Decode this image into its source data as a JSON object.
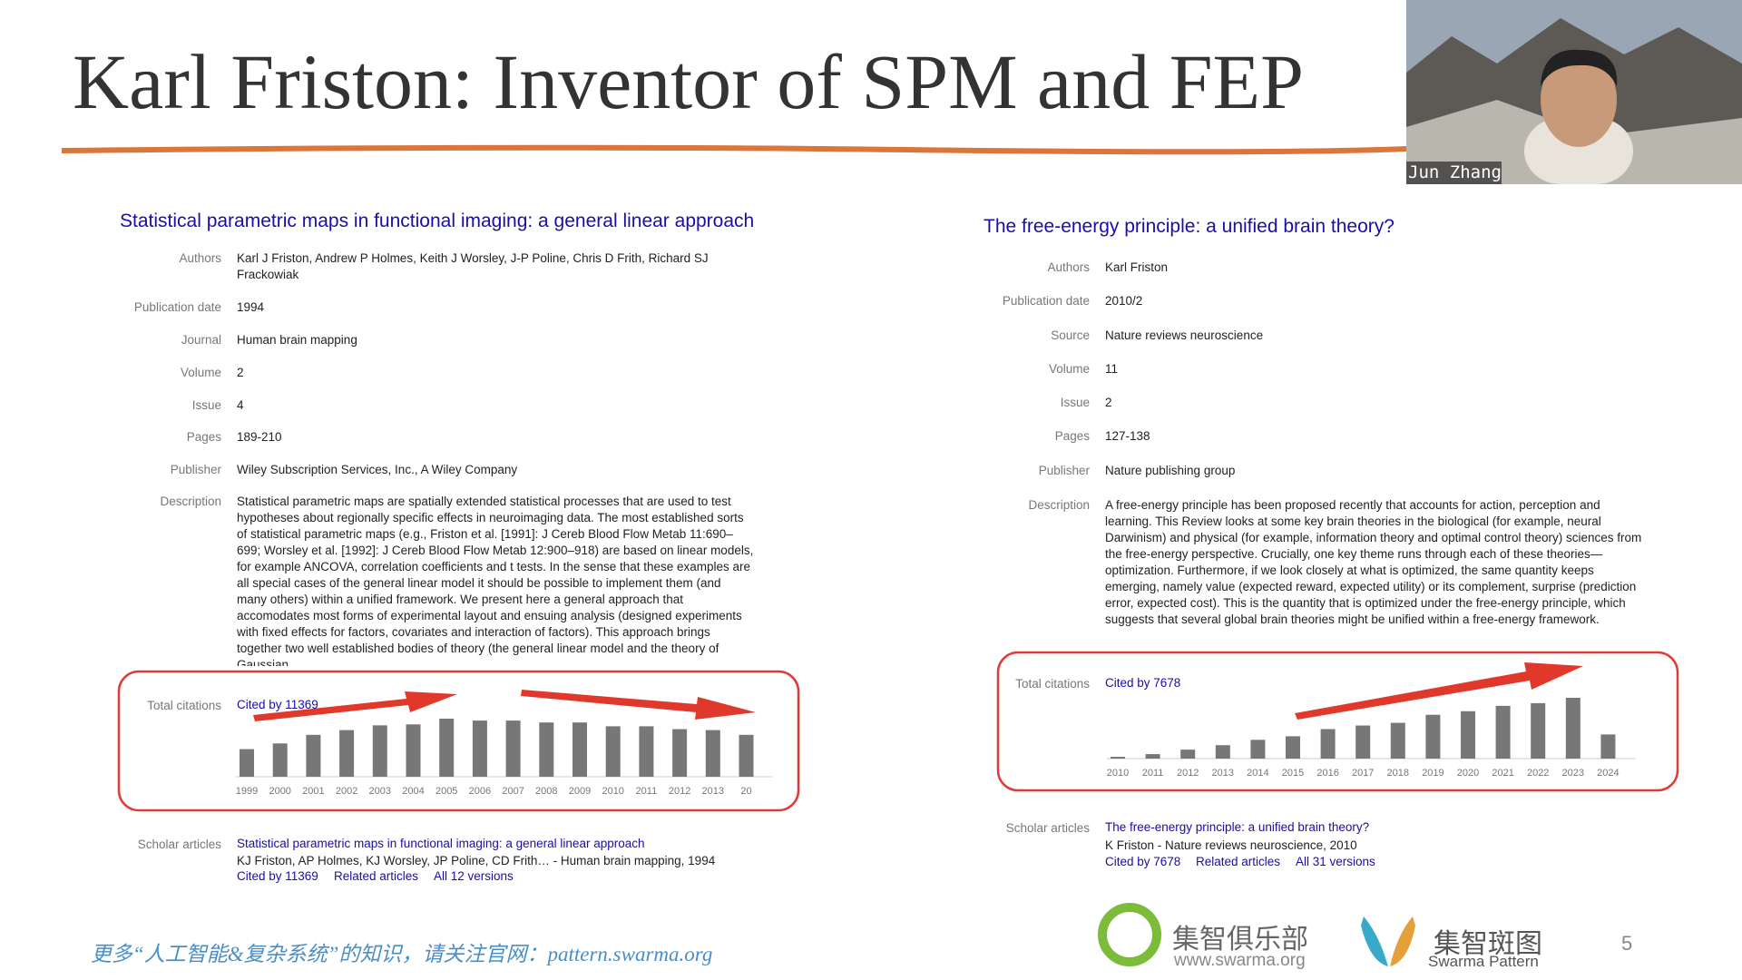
{
  "slide": {
    "title": "Karl Friston: Inventor of SPM and FEP",
    "page_number": "5"
  },
  "video": {
    "name": "Jun Zhang"
  },
  "papers": [
    {
      "title": "Statistical parametric maps in functional imaging: a general linear approach",
      "fields": [
        {
          "label": "Authors",
          "value": "Karl J Friston, Andrew P Holmes, Keith J Worsley, J-P Poline, Chris D Frith, Richard SJ Frackowiak"
        },
        {
          "label": "Publication date",
          "value": "1994"
        },
        {
          "label": "Journal",
          "value": "Human brain mapping"
        },
        {
          "label": "Volume",
          "value": "2"
        },
        {
          "label": "Issue",
          "value": "4"
        },
        {
          "label": "Pages",
          "value": "189-210"
        },
        {
          "label": "Publisher",
          "value": "Wiley Subscription Services, Inc., A Wiley Company"
        },
        {
          "label": "Description",
          "value": "Statistical parametric maps are spatially extended statistical processes that are used to test hypotheses about regionally specific effects in neuroimaging data. The most established sorts of statistical parametric maps (e.g., Friston et al. [1991]: J Cereb Blood Flow Metab 11:690–699; Worsley et al. [1992]: J Cereb Blood Flow Metab 12:900–918) are based on linear models, for example ANCOVA, correlation coefficients and t tests. In the sense that these examples are all special cases of the general linear model it should be possible to implement them (and many others) within a unified framework. We present here a general approach that accomodates most forms of experimental layout and ensuing analysis (designed experiments with fixed effects for factors, covariates and interaction of factors). This approach brings together two well established bodies of theory (the general linear model and the theory of Gaussian ..."
        }
      ],
      "citations": {
        "label": "Total citations",
        "link": "Cited by 11369",
        "chart": {
          "type": "bar",
          "color": "#777777",
          "categories": [
            "1999",
            "2000",
            "2001",
            "2002",
            "2003",
            "2004",
            "2005",
            "2006",
            "2007",
            "2008",
            "2009",
            "2010",
            "2011",
            "2012",
            "2013",
            "20"
          ],
          "values": [
            290,
            350,
            440,
            490,
            540,
            550,
            610,
            590,
            590,
            570,
            570,
            530,
            530,
            500,
            490,
            440
          ]
        }
      },
      "scholar": {
        "label": "Scholar articles",
        "title": "Statistical parametric maps in functional imaging: a general linear approach",
        "info": "KJ Friston, AP Holmes, KJ Worsley, JP Poline, CD Frith… - Human brain mapping, 1994",
        "links": [
          "Cited by 11369",
          "Related articles",
          "All 12 versions"
        ]
      }
    },
    {
      "title": "The free-energy principle: a unified brain theory?",
      "fields": [
        {
          "label": "Authors",
          "value": "Karl Friston"
        },
        {
          "label": "Publication date",
          "value": "2010/2"
        },
        {
          "label": "Source",
          "value": "Nature reviews neuroscience"
        },
        {
          "label": "Volume",
          "value": "11"
        },
        {
          "label": "Issue",
          "value": "2"
        },
        {
          "label": "Pages",
          "value": "127-138"
        },
        {
          "label": "Publisher",
          "value": "Nature publishing group"
        },
        {
          "label": "Description",
          "value": "A free-energy principle has been proposed recently that accounts for action, perception and learning. This Review looks at some key brain theories in the biological (for example, neural Darwinism) and physical (for example, information theory and optimal control theory) sciences from the free-energy perspective. Crucially, one key theme runs through each of these theories—optimization. Furthermore, if we look closely at what is optimized, the same quantity keeps emerging, namely value (expected reward, expected utility) or its complement, surprise (prediction error, expected cost). This is the quantity that is optimized under the free-energy principle, which suggests that several global brain theories might be unified within a free-energy framework."
        }
      ],
      "citations": {
        "label": "Total citations",
        "link": "Cited by 7678",
        "chart": {
          "type": "bar",
          "color": "#777777",
          "categories": [
            "2010",
            "2011",
            "2012",
            "2013",
            "2014",
            "2015",
            "2016",
            "2017",
            "2018",
            "2019",
            "2020",
            "2021",
            "2022",
            "2023",
            "2024"
          ],
          "values": [
            20,
            50,
            100,
            150,
            210,
            250,
            330,
            370,
            400,
            490,
            530,
            590,
            620,
            680,
            270
          ]
        }
      },
      "scholar": {
        "label": "Scholar articles",
        "title": "The free-energy principle: a unified brain theory?",
        "info": "K Friston - Nature reviews neuroscience, 2010",
        "links": [
          "Cited by 7678",
          "Related articles",
          "All 31 versions"
        ]
      }
    }
  ],
  "footer": {
    "text": "更多“人工智能&复杂系统”的知识，请关注官网：pattern.swarma.org",
    "logo1_name": "集智俱乐部",
    "logo1_url": "www.swarma.org",
    "logo2_name": "集智斑图",
    "logo2_sub": "Swarma Pattern"
  }
}
